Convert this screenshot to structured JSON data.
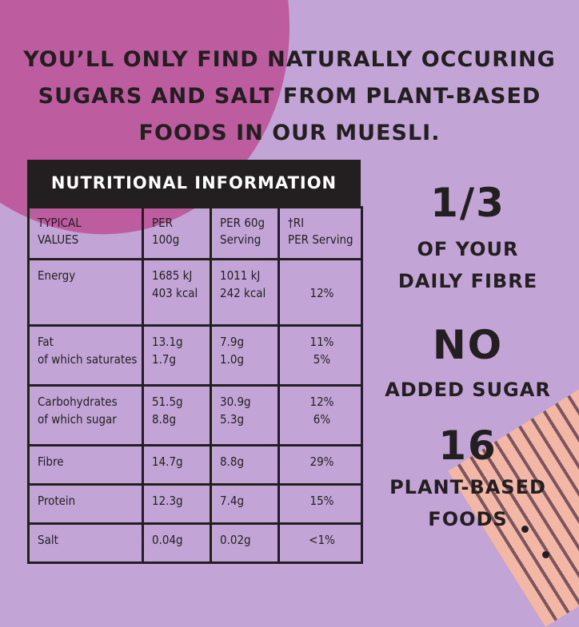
{
  "headline": {
    "line1": "YOU’LL ONLY FIND NATURALLY OCCURING",
    "line2": "SUGARS AND SALT FROM PLANT-BASED",
    "line3": "FOODS IN OUR MUESLI."
  },
  "nutrition": {
    "title": "NUTRITIONAL INFORMATION",
    "columns": [
      [
        "TYPICAL",
        "VALUES"
      ],
      [
        "PER",
        "100g"
      ],
      [
        "PER 60g",
        "Serving"
      ],
      [
        "†RI",
        "PER Serving"
      ]
    ],
    "rows": [
      {
        "label": [
          "Energy",
          ""
        ],
        "per100": [
          "1685 kJ",
          "403 kcal"
        ],
        "per60": [
          "1011 kJ",
          "242 kcal"
        ],
        "ri": [
          "",
          "12%"
        ]
      },
      {
        "label": [
          "Fat",
          "of which saturates"
        ],
        "per100": [
          "13.1g",
          "1.7g"
        ],
        "per60": [
          "7.9g",
          "1.0g"
        ],
        "ri": [
          "11%",
          "5%"
        ]
      },
      {
        "label": [
          "Carbohydrates",
          "of which sugar"
        ],
        "per100": [
          "51.5g",
          "8.8g"
        ],
        "per60": [
          "30.9g",
          "5.3g"
        ],
        "ri": [
          "12%",
          "6%"
        ]
      },
      {
        "label": [
          "Fibre"
        ],
        "per100": [
          "14.7g"
        ],
        "per60": [
          "8.8g"
        ],
        "ri": [
          "29%"
        ]
      },
      {
        "label": [
          "Protein"
        ],
        "per100": [
          "12.3g"
        ],
        "per60": [
          "7.4g"
        ],
        "ri": [
          "15%"
        ]
      },
      {
        "label": [
          "Salt"
        ],
        "per100": [
          "0.04g"
        ],
        "per60": [
          "0.02g"
        ],
        "ri": [
          "<1%"
        ]
      }
    ]
  },
  "highlights": {
    "fibre": {
      "big": "1/3",
      "line1": "OF YOUR",
      "line2": "DAILY FIBRE"
    },
    "sugar": {
      "big": "NO",
      "line1": "ADDED SUGAR"
    },
    "foods": {
      "big": "16",
      "line1": "PLANT-BASED",
      "line2": "FOODS"
    }
  },
  "colors": {
    "background": "#c2a5d6",
    "blob": "#bd5c9f",
    "ink": "#231f20",
    "stripes": "#f3b7a6"
  }
}
